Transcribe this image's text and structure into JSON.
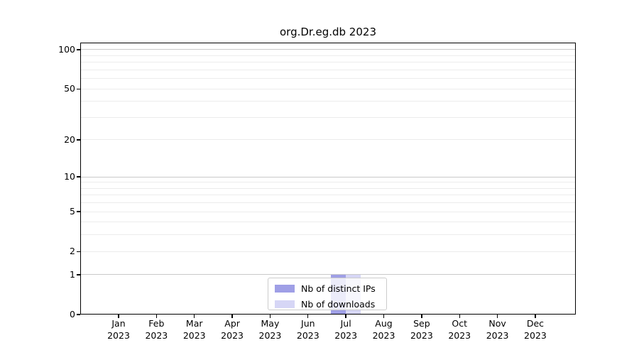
{
  "chart_data": {
    "type": "bar",
    "title": "org.Dr.eg.db 2023",
    "scale": "log1p",
    "months": [
      "Jan",
      "Feb",
      "Mar",
      "Apr",
      "May",
      "Jun",
      "Jul",
      "Aug",
      "Sep",
      "Oct",
      "Nov",
      "Dec"
    ],
    "year": "2023",
    "y_tick_labels": [
      0,
      1,
      2,
      5,
      10,
      20,
      50,
      100
    ],
    "minor_gridlines": [
      1,
      2,
      3,
      4,
      5,
      6,
      7,
      8,
      9,
      10,
      20,
      30,
      40,
      50,
      60,
      70,
      80,
      90,
      100
    ],
    "major_gridlines": [
      1,
      10,
      100
    ],
    "ylim": [
      0,
      113
    ],
    "grid_color_minor": "#ececec",
    "grid_color_major": "#c9c9c9",
    "series": [
      {
        "name": "Nb of distinct IPs",
        "color": "#9f9fe6",
        "values": [
          0,
          0,
          0,
          0,
          0,
          0,
          1,
          0,
          0,
          0,
          0,
          0
        ]
      },
      {
        "name": "Nb of downloads",
        "color": "#d6d6f6",
        "values": [
          0,
          0,
          0,
          0,
          0,
          0,
          1,
          0,
          0,
          0,
          0,
          0
        ]
      }
    ],
    "legend_position": "bottom-center"
  }
}
